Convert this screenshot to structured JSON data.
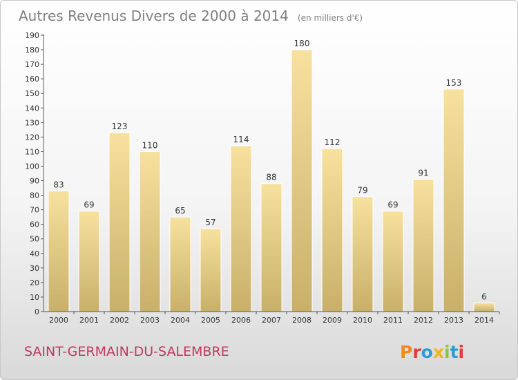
{
  "chart_data": {
    "type": "bar",
    "title": "Autres Revenus Divers de 2000 à 2014",
    "subtitle": "(en milliers d'€)",
    "categories": [
      "2000",
      "2001",
      "2002",
      "2003",
      "2004",
      "2005",
      "2006",
      "2007",
      "2008",
      "2009",
      "2010",
      "2011",
      "2012",
      "2013",
      "2014"
    ],
    "values": [
      83,
      69,
      123,
      110,
      65,
      57,
      114,
      88,
      180,
      112,
      79,
      69,
      91,
      153,
      6
    ],
    "ylim": [
      0,
      190
    ],
    "ytick_step": 10,
    "grid": false,
    "bar_color_top": "#f7e19e",
    "bar_color_bottom": "#c8b06a"
  },
  "footer": {
    "commune": "SAINT-GERMAIN-DU-SALEMBRE",
    "logo_text": "Proxiti"
  },
  "colors": {
    "commune": "#c0395e",
    "logo": [
      "#ef8a1f",
      "#e23b3b",
      "#2e9ad6",
      "#f2b31c",
      "#8cc43e",
      "#2e9ad6",
      "#e23b3b"
    ]
  }
}
